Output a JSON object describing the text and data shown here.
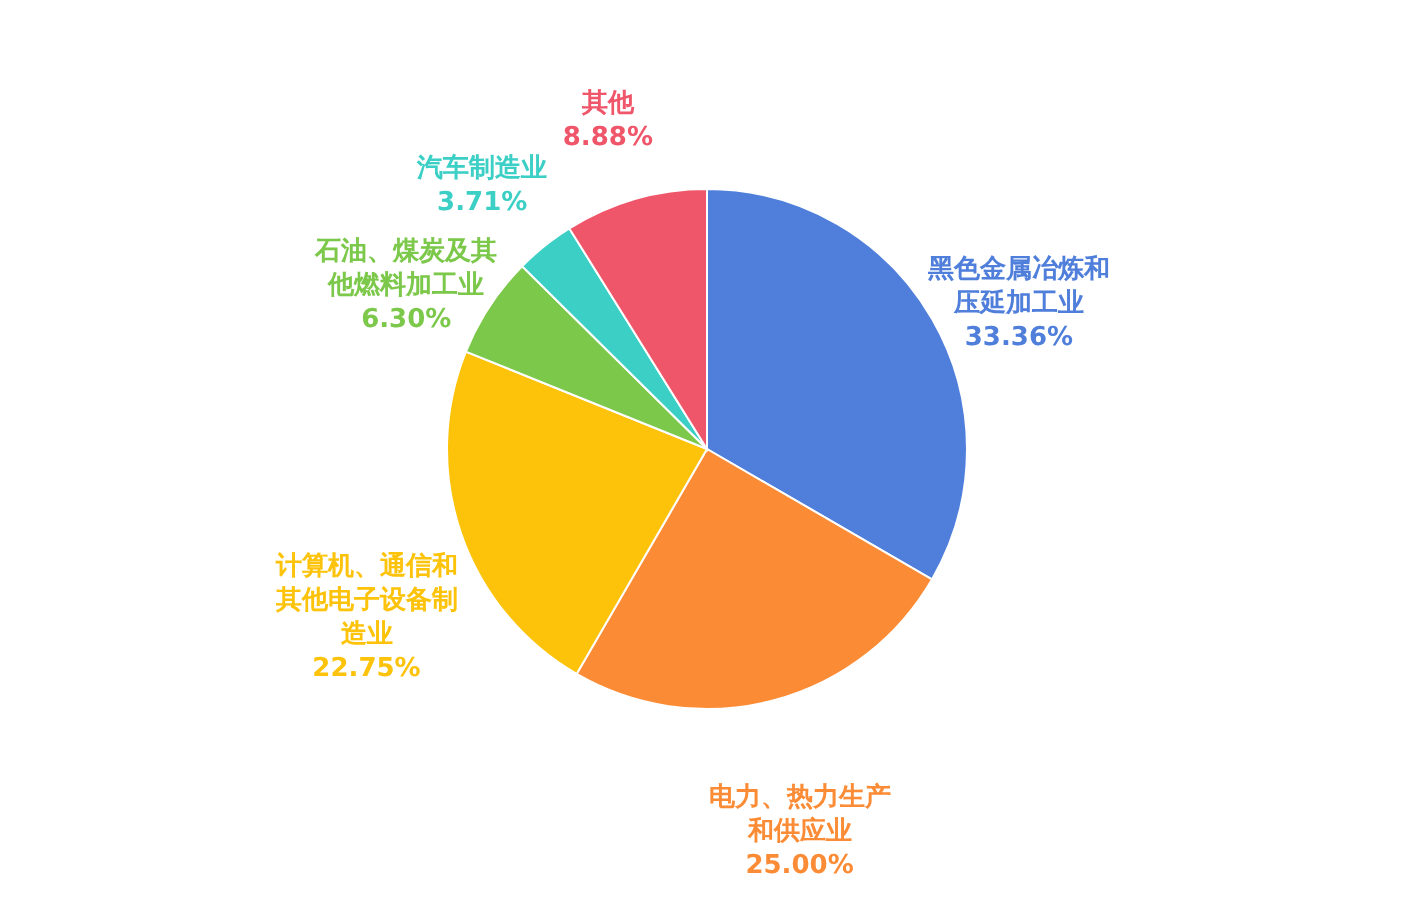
{
  "chart_data": {
    "type": "pie",
    "categories": [
      "黑色金属冶炼和压延加工业",
      "电力、热力生产和供应业",
      "计算机、通信和其他电子设备制造业",
      "石油、煤炭及其他燃料加工业",
      "汽车制造业",
      "其他"
    ],
    "values": [
      33.36,
      25.0,
      22.75,
      6.3,
      3.71,
      8.88
    ],
    "colors": [
      "#4f7fdb",
      "#fb8c35",
      "#fcc30a",
      "#7cc84a",
      "#3ccfc5",
      "#f0566a"
    ],
    "value_labels": [
      "33.36%",
      "25.00%",
      "22.75%",
      "6.30%",
      "3.71%",
      "8.88%"
    ]
  }
}
